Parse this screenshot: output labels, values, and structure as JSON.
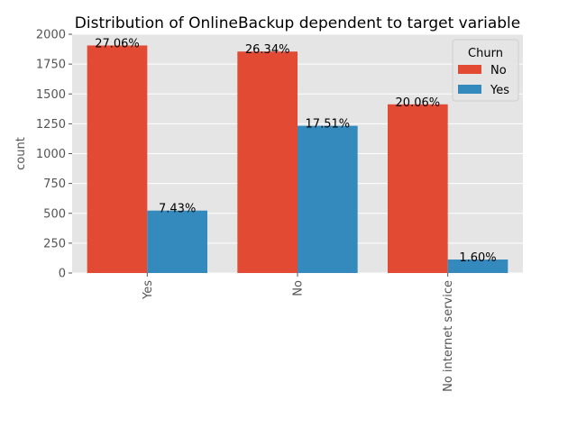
{
  "chart_data": {
    "type": "bar",
    "title": "Distribution of OnlineBackup dependent to target variable",
    "xlabel": "",
    "ylabel": "count",
    "categories": [
      "Yes",
      "No",
      "No internet service"
    ],
    "series": [
      {
        "name": "No",
        "values": [
          1906,
          1855,
          1413
        ],
        "labels": [
          "27.06%",
          "26.34%",
          "20.06%"
        ],
        "color": "#E24A33"
      },
      {
        "name": "Yes",
        "values": [
          523,
          1233,
          113
        ],
        "labels": [
          "7.43%",
          "17.51%",
          "1.60%"
        ],
        "color": "#348ABD"
      }
    ],
    "ylim": [
      0,
      2000
    ],
    "yticks": [
      0,
      250,
      500,
      750,
      1000,
      1250,
      1500,
      1750,
      2000
    ],
    "grid": true,
    "legend": {
      "title": "Churn",
      "placement": "top-right"
    },
    "colors": {
      "plot_background": "#E5E5E5",
      "grid": "#FFFFFF",
      "text": "#000000",
      "tick_text": "#555555"
    }
  }
}
